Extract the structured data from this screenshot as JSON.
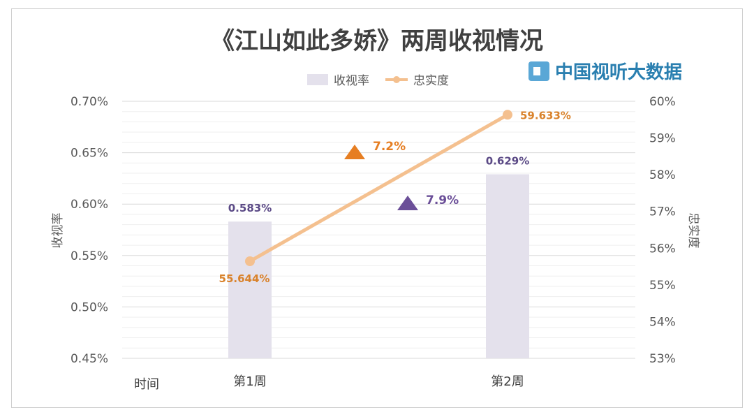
{
  "chart_data": {
    "type": "bar",
    "title": "《江山如此多娇》两周收视情况",
    "categories": [
      "第1周",
      "第2周"
    ],
    "x_axis_label": "时间",
    "legend_position": "top",
    "series": [
      {
        "name": "收视率",
        "type": "bar",
        "axis": "left",
        "values": [
          0.583,
          0.629
        ],
        "labels": [
          "0.583%",
          "0.629%"
        ],
        "color": "#e4e1ec"
      },
      {
        "name": "忠实度",
        "type": "line",
        "axis": "right",
        "values": [
          55.644,
          59.633
        ],
        "labels": [
          "55.644%",
          "59.633%"
        ],
        "color": "#f4c08f"
      }
    ],
    "left_axis": {
      "label": "收视率",
      "ylim": [
        0.45,
        0.7
      ],
      "ticks": [
        "0.70%",
        "0.65%",
        "0.60%",
        "0.55%",
        "0.50%",
        "0.45%"
      ]
    },
    "right_axis": {
      "label": "忠实度",
      "ylim": [
        53,
        60
      ],
      "ticks": [
        "60%",
        "59%",
        "58%",
        "57%",
        "56%",
        "55%",
        "54%",
        "53%"
      ]
    },
    "grid": true,
    "annotations": [
      {
        "label": "7.2%",
        "color": "#e67e22"
      },
      {
        "label": "7.9%",
        "color": "#6b4f98"
      }
    ]
  },
  "watermark": {
    "text": "中国视听大数据"
  }
}
